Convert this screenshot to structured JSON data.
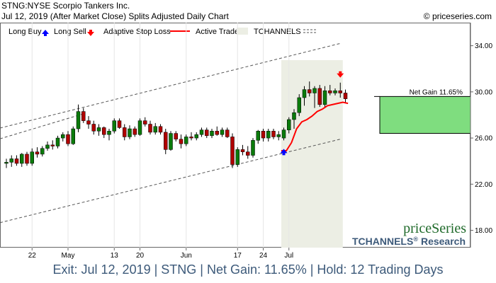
{
  "header": {
    "line1": "STNG:NYSE Scorpio Tankers Inc.",
    "line2": "Jul 12, 2019 (After Market Close)  Splits Adjusted Daily Chart",
    "copyright": "© priceseries.com"
  },
  "legend": {
    "long_buy": "Long Buy",
    "long_sell": "Long Sell",
    "adaptive_stop": "Adaptive Stop Loss",
    "active_trade": "Active Trade",
    "tchannels": "TCHANNELS"
  },
  "brand": {
    "logo": "priceSeries",
    "research": "TCHANNELS",
    "research_mark": "®",
    "research_suffix": "Research"
  },
  "net_gain_label": "Net Gain 11.65%",
  "footer": "Exit: Jul 12, 2019 | STNG | Net Gain: 11.65% | Hold: 12 Trading Days",
  "colors": {
    "up": "#0a7a0a",
    "down": "#b00000",
    "stop": "#ff0000",
    "active_bg": "#eceee4",
    "gain_box": "#7fdd7f",
    "buy_arrow": "#0000ff",
    "sell_arrow": "#ff0000",
    "footer_text": "#3d5a7a"
  },
  "chart_data": {
    "type": "candlestick",
    "ylim": [
      16.5,
      36
    ],
    "y_ticks": [
      "34.00",
      "30.00",
      "26.00",
      "22.00",
      "18.00"
    ],
    "y_tick_values": [
      34,
      30,
      26,
      22,
      18
    ],
    "x_ticks": [
      {
        "label": "22",
        "bar": 5
      },
      {
        "label": "May",
        "bar": 12
      },
      {
        "label": "13",
        "bar": 21
      },
      {
        "label": "20",
        "bar": 26
      },
      {
        "label": "Jun",
        "bar": 35
      },
      {
        "label": "17",
        "bar": 45
      },
      {
        "label": "24",
        "bar": 50
      },
      {
        "label": "Jul",
        "bar": 55
      }
    ],
    "bars": [
      {
        "o": 23.8,
        "h": 24.2,
        "l": 23.4,
        "c": 23.9
      },
      {
        "o": 23.9,
        "h": 24.5,
        "l": 23.5,
        "c": 24.2
      },
      {
        "o": 24.2,
        "h": 24.5,
        "l": 23.6,
        "c": 23.8
      },
      {
        "o": 23.8,
        "h": 24.7,
        "l": 23.5,
        "c": 24.6
      },
      {
        "o": 24.6,
        "h": 24.8,
        "l": 23.6,
        "c": 23.8
      },
      {
        "o": 23.8,
        "h": 25.1,
        "l": 23.6,
        "c": 24.8
      },
      {
        "o": 24.8,
        "h": 25.2,
        "l": 24.3,
        "c": 24.6
      },
      {
        "o": 24.6,
        "h": 25.3,
        "l": 24.4,
        "c": 25.1
      },
      {
        "o": 25.1,
        "h": 25.7,
        "l": 24.9,
        "c": 25.4
      },
      {
        "o": 25.4,
        "h": 25.8,
        "l": 25.0,
        "c": 25.3
      },
      {
        "o": 25.3,
        "h": 26.2,
        "l": 25.1,
        "c": 26.0
      },
      {
        "o": 26.0,
        "h": 26.5,
        "l": 25.7,
        "c": 26.3
      },
      {
        "o": 26.3,
        "h": 26.6,
        "l": 25.3,
        "c": 25.5
      },
      {
        "o": 25.5,
        "h": 27.0,
        "l": 25.4,
        "c": 26.8
      },
      {
        "o": 26.8,
        "h": 28.9,
        "l": 26.5,
        "c": 28.3
      },
      {
        "o": 28.3,
        "h": 28.6,
        "l": 27.3,
        "c": 27.5
      },
      {
        "o": 27.5,
        "h": 27.9,
        "l": 26.8,
        "c": 27.2
      },
      {
        "o": 27.2,
        "h": 27.5,
        "l": 26.3,
        "c": 26.6
      },
      {
        "o": 26.6,
        "h": 27.2,
        "l": 26.2,
        "c": 26.9
      },
      {
        "o": 26.9,
        "h": 27.0,
        "l": 26.0,
        "c": 26.3
      },
      {
        "o": 26.3,
        "h": 26.8,
        "l": 25.8,
        "c": 26.6
      },
      {
        "o": 26.6,
        "h": 27.7,
        "l": 26.4,
        "c": 27.5
      },
      {
        "o": 27.5,
        "h": 27.7,
        "l": 26.8,
        "c": 26.9
      },
      {
        "o": 26.9,
        "h": 27.2,
        "l": 25.8,
        "c": 26.1
      },
      {
        "o": 26.1,
        "h": 27.1,
        "l": 25.9,
        "c": 26.8
      },
      {
        "o": 26.8,
        "h": 27.0,
        "l": 26.1,
        "c": 26.3
      },
      {
        "o": 26.3,
        "h": 27.7,
        "l": 26.2,
        "c": 27.5
      },
      {
        "o": 27.5,
        "h": 27.8,
        "l": 27.0,
        "c": 27.2
      },
      {
        "o": 27.2,
        "h": 27.5,
        "l": 26.3,
        "c": 26.5
      },
      {
        "o": 26.5,
        "h": 27.3,
        "l": 26.3,
        "c": 27.0
      },
      {
        "o": 27.0,
        "h": 27.2,
        "l": 26.3,
        "c": 26.5
      },
      {
        "o": 26.5,
        "h": 26.8,
        "l": 24.6,
        "c": 25.0
      },
      {
        "o": 25.0,
        "h": 26.6,
        "l": 24.9,
        "c": 26.4
      },
      {
        "o": 26.4,
        "h": 26.6,
        "l": 25.7,
        "c": 25.9
      },
      {
        "o": 25.9,
        "h": 26.3,
        "l": 25.1,
        "c": 25.5
      },
      {
        "o": 25.5,
        "h": 26.3,
        "l": 25.3,
        "c": 26.1
      },
      {
        "o": 26.1,
        "h": 26.5,
        "l": 25.8,
        "c": 26.0
      },
      {
        "o": 26.0,
        "h": 26.5,
        "l": 25.8,
        "c": 26.3
      },
      {
        "o": 26.3,
        "h": 26.9,
        "l": 26.1,
        "c": 26.7
      },
      {
        "o": 26.7,
        "h": 26.9,
        "l": 26.0,
        "c": 26.2
      },
      {
        "o": 26.2,
        "h": 26.8,
        "l": 26.0,
        "c": 26.6
      },
      {
        "o": 26.6,
        "h": 27.0,
        "l": 26.2,
        "c": 26.3
      },
      {
        "o": 26.3,
        "h": 26.9,
        "l": 26.1,
        "c": 26.7
      },
      {
        "o": 26.7,
        "h": 26.9,
        "l": 26.0,
        "c": 26.1
      },
      {
        "o": 26.1,
        "h": 26.4,
        "l": 23.4,
        "c": 23.7
      },
      {
        "o": 23.7,
        "h": 25.2,
        "l": 23.5,
        "c": 25.0
      },
      {
        "o": 25.0,
        "h": 25.4,
        "l": 24.5,
        "c": 24.8
      },
      {
        "o": 24.8,
        "h": 25.3,
        "l": 24.2,
        "c": 24.5
      },
      {
        "o": 24.5,
        "h": 26.0,
        "l": 24.3,
        "c": 25.8
      },
      {
        "o": 25.8,
        "h": 26.7,
        "l": 25.5,
        "c": 26.6
      },
      {
        "o": 26.6,
        "h": 26.8,
        "l": 25.7,
        "c": 26.0
      },
      {
        "o": 26.0,
        "h": 26.8,
        "l": 25.7,
        "c": 26.6
      },
      {
        "o": 26.6,
        "h": 26.8,
        "l": 25.9,
        "c": 26.1
      },
      {
        "o": 26.1,
        "h": 26.6,
        "l": 25.8,
        "c": 26.3
      },
      {
        "o": 26.0,
        "h": 26.9,
        "l": 25.8,
        "c": 26.7
      },
      {
        "o": 26.7,
        "h": 27.8,
        "l": 26.4,
        "c": 27.6
      },
      {
        "o": 27.6,
        "h": 28.5,
        "l": 26.8,
        "c": 28.2
      },
      {
        "o": 28.2,
        "h": 29.8,
        "l": 27.9,
        "c": 29.5
      },
      {
        "o": 29.5,
        "h": 30.5,
        "l": 28.8,
        "c": 30.2
      },
      {
        "o": 30.2,
        "h": 30.9,
        "l": 29.6,
        "c": 29.9
      },
      {
        "o": 29.9,
        "h": 30.5,
        "l": 28.6,
        "c": 30.3
      },
      {
        "o": 30.3,
        "h": 30.6,
        "l": 28.7,
        "c": 28.9
      },
      {
        "o": 28.9,
        "h": 30.5,
        "l": 28.7,
        "c": 30.1
      },
      {
        "o": 30.1,
        "h": 30.6,
        "l": 29.7,
        "c": 29.9
      },
      {
        "o": 29.9,
        "h": 30.3,
        "l": 29.7,
        "c": 30.1
      },
      {
        "o": 30.1,
        "h": 30.8,
        "l": 29.5,
        "c": 29.9
      },
      {
        "o": 29.9,
        "h": 30.2,
        "l": 29.1,
        "c": 29.4
      }
    ],
    "trade": {
      "start_bar": 54,
      "end_bar": 65
    },
    "stop_loss": [
      24.9,
      24.9,
      25.6,
      26.8,
      27.4,
      27.6,
      27.9,
      28.3,
      28.5,
      28.8,
      28.9,
      29.0,
      29.1,
      29.0
    ],
    "channel_upper": [
      [
        0,
        27.0
      ],
      [
        65,
        34.2
      ]
    ],
    "channel_mid": [
      [
        0,
        26.1
      ],
      [
        15,
        28.1
      ]
    ],
    "channel_lower": [
      [
        0,
        18.8
      ],
      [
        65,
        25.9
      ]
    ],
    "gain_box": {
      "low": 26.4,
      "high": 29.6
    },
    "buy_arrow_bar": 54,
    "sell_arrow_bar": 65
  }
}
